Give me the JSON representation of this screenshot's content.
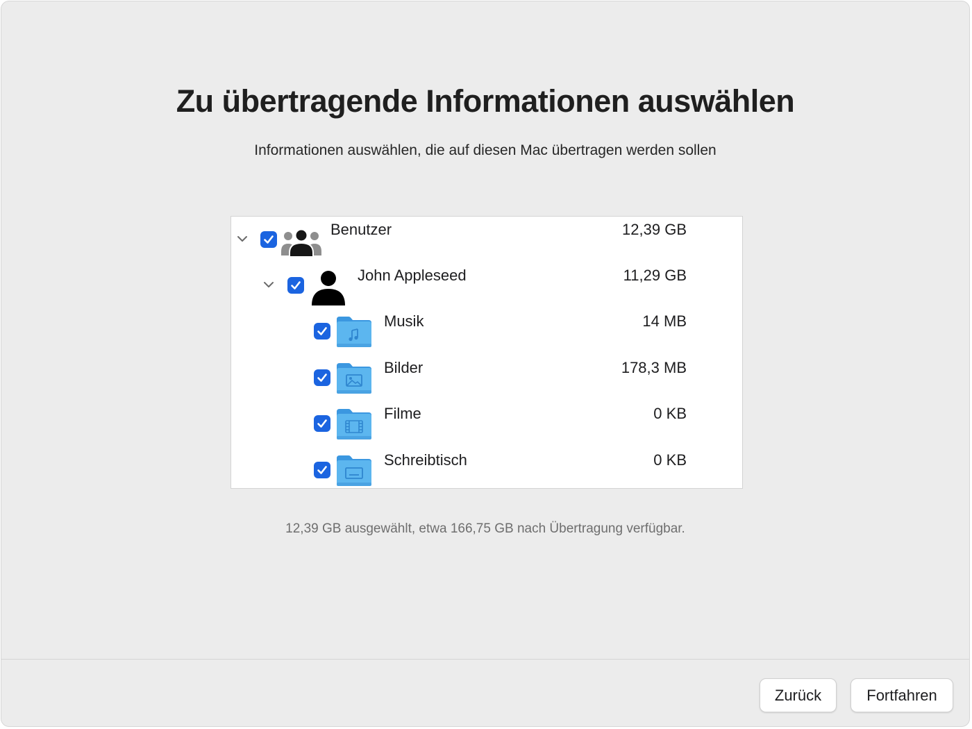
{
  "dialog": {
    "title": "Zu übertragende Informationen auswählen",
    "subtitle": "Informationen auswählen, die auf diesen Mac übertragen werden sollen"
  },
  "tree": {
    "users": {
      "label": "Benutzer",
      "size": "12,39 GB",
      "checked": true,
      "expanded": true,
      "icon": "users-group-icon"
    },
    "user": {
      "label": "John Appleseed",
      "size": "11,29 GB",
      "checked": true,
      "expanded": true,
      "icon": "person-icon"
    },
    "folders": [
      {
        "label": "Musik",
        "size": "14 MB",
        "checked": true,
        "icon": "music-folder-icon"
      },
      {
        "label": "Bilder",
        "size": "178,3 MB",
        "checked": true,
        "icon": "pictures-folder-icon"
      },
      {
        "label": "Filme",
        "size": "0 KB",
        "checked": true,
        "icon": "movies-folder-icon"
      },
      {
        "label": "Schreibtisch",
        "size": "0 KB",
        "checked": true,
        "icon": "desktop-folder-icon"
      }
    ]
  },
  "summary": "12,39 GB ausgewählt, etwa 166,75 GB nach Übertragung verfügbar.",
  "buttons": {
    "back": "Zurück",
    "continue": "Fortfahren"
  },
  "colors": {
    "checkbox": "#1b64e0",
    "folder": "#5cb6ef",
    "background": "#ececec"
  }
}
